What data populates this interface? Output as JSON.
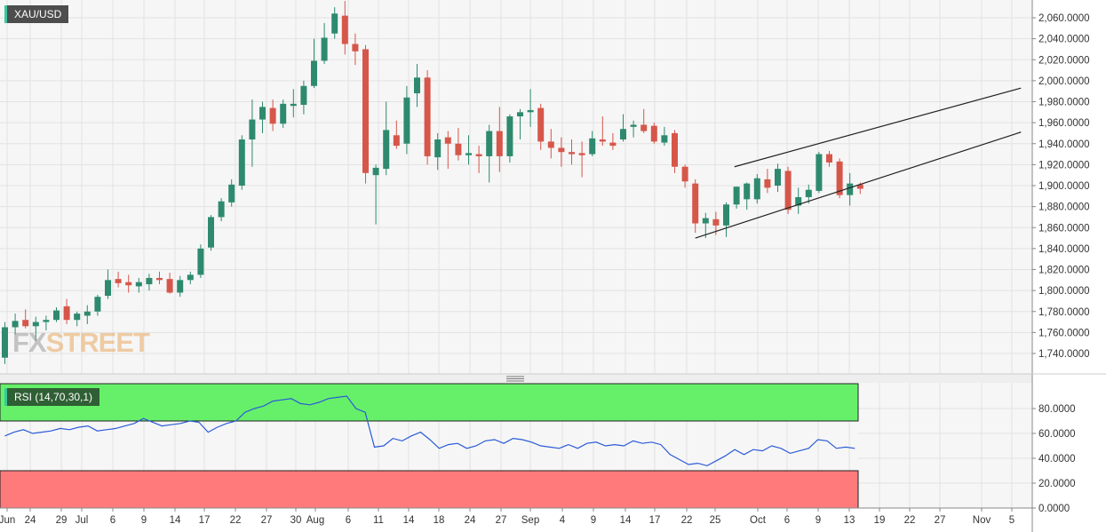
{
  "chart_data": [
    {
      "type": "candlestick",
      "symbol": "XAU/USD",
      "x_tick_labels": [
        "Jun",
        "24",
        "29",
        "Jul",
        "6",
        "9",
        "14",
        "17",
        "22",
        "27",
        "30",
        "Aug",
        "6",
        "11",
        "14",
        "18",
        "24",
        "27",
        "Sep",
        "4",
        "9",
        "14",
        "17",
        "22",
        "25",
        "Oct",
        "6",
        "9",
        "13",
        "19",
        "22",
        "27",
        "Nov",
        "5"
      ],
      "y_tick_labels": [
        "1,740.0000",
        "1,760.0000",
        "1,780.0000",
        "1,800.0000",
        "1,820.0000",
        "1,840.0000",
        "1,860.0000",
        "1,880.0000",
        "1,900.0000",
        "1,920.0000",
        "1,940.0000",
        "1,960.0000",
        "1,980.0000",
        "2,000.0000",
        "2,020.0000",
        "2,040.0000",
        "2,060.0000"
      ],
      "ylim": [
        1725,
        2075
      ],
      "grid": true,
      "colors": {
        "up": "#2e8a6e",
        "down": "#d6574a"
      },
      "candles": [
        {
          "o": 1736,
          "h": 1770,
          "l": 1730,
          "c": 1765
        },
        {
          "o": 1765,
          "h": 1778,
          "l": 1758,
          "c": 1771
        },
        {
          "o": 1772,
          "h": 1782,
          "l": 1764,
          "c": 1766
        },
        {
          "o": 1766,
          "h": 1775,
          "l": 1752,
          "c": 1770
        },
        {
          "o": 1770,
          "h": 1776,
          "l": 1762,
          "c": 1772
        },
        {
          "o": 1772,
          "h": 1784,
          "l": 1770,
          "c": 1781
        },
        {
          "o": 1785,
          "h": 1792,
          "l": 1768,
          "c": 1772
        },
        {
          "o": 1772,
          "h": 1780,
          "l": 1766,
          "c": 1778
        },
        {
          "o": 1776,
          "h": 1786,
          "l": 1768,
          "c": 1780
        },
        {
          "o": 1780,
          "h": 1796,
          "l": 1776,
          "c": 1794
        },
        {
          "o": 1795,
          "h": 1820,
          "l": 1792,
          "c": 1810
        },
        {
          "o": 1811,
          "h": 1818,
          "l": 1803,
          "c": 1807
        },
        {
          "o": 1808,
          "h": 1815,
          "l": 1798,
          "c": 1805
        },
        {
          "o": 1804,
          "h": 1812,
          "l": 1798,
          "c": 1808
        },
        {
          "o": 1806,
          "h": 1816,
          "l": 1800,
          "c": 1812
        },
        {
          "o": 1812,
          "h": 1818,
          "l": 1806,
          "c": 1810
        },
        {
          "o": 1811,
          "h": 1817,
          "l": 1797,
          "c": 1798
        },
        {
          "o": 1798,
          "h": 1814,
          "l": 1794,
          "c": 1810
        },
        {
          "o": 1810,
          "h": 1818,
          "l": 1806,
          "c": 1815
        },
        {
          "o": 1815,
          "h": 1844,
          "l": 1812,
          "c": 1840
        },
        {
          "o": 1841,
          "h": 1872,
          "l": 1838,
          "c": 1870
        },
        {
          "o": 1870,
          "h": 1888,
          "l": 1866,
          "c": 1885
        },
        {
          "o": 1884,
          "h": 1906,
          "l": 1880,
          "c": 1901
        },
        {
          "o": 1900,
          "h": 1948,
          "l": 1896,
          "c": 1944
        },
        {
          "o": 1944,
          "h": 1982,
          "l": 1918,
          "c": 1963
        },
        {
          "o": 1963,
          "h": 1980,
          "l": 1950,
          "c": 1975
        },
        {
          "o": 1974,
          "h": 1982,
          "l": 1952,
          "c": 1959
        },
        {
          "o": 1959,
          "h": 1982,
          "l": 1955,
          "c": 1978
        },
        {
          "o": 1976,
          "h": 1992,
          "l": 1965,
          "c": 1978
        },
        {
          "o": 1977,
          "h": 2000,
          "l": 1968,
          "c": 1995
        },
        {
          "o": 1995,
          "h": 2040,
          "l": 1993,
          "c": 2019
        },
        {
          "o": 2019,
          "h": 2055,
          "l": 2016,
          "c": 2041
        },
        {
          "o": 2045,
          "h": 2070,
          "l": 2040,
          "c": 2064
        },
        {
          "o": 2062,
          "h": 2076,
          "l": 2025,
          "c": 2035
        },
        {
          "o": 2035,
          "h": 2045,
          "l": 2015,
          "c": 2028
        },
        {
          "o": 2030,
          "h": 2034,
          "l": 1902,
          "c": 1912
        },
        {
          "o": 1910,
          "h": 1920,
          "l": 1863,
          "c": 1917
        },
        {
          "o": 1916,
          "h": 1980,
          "l": 1910,
          "c": 1953
        },
        {
          "o": 1948,
          "h": 1962,
          "l": 1935,
          "c": 1938
        },
        {
          "o": 1940,
          "h": 1995,
          "l": 1930,
          "c": 1984
        },
        {
          "o": 1988,
          "h": 2016,
          "l": 1975,
          "c": 2003
        },
        {
          "o": 2003,
          "h": 2010,
          "l": 1920,
          "c": 1928
        },
        {
          "o": 1927,
          "h": 1950,
          "l": 1915,
          "c": 1944
        },
        {
          "o": 1946,
          "h": 1952,
          "l": 1916,
          "c": 1940
        },
        {
          "o": 1940,
          "h": 1955,
          "l": 1924,
          "c": 1929
        },
        {
          "o": 1929,
          "h": 1948,
          "l": 1920,
          "c": 1931
        },
        {
          "o": 1930,
          "h": 1938,
          "l": 1912,
          "c": 1928
        },
        {
          "o": 1928,
          "h": 1958,
          "l": 1903,
          "c": 1952
        },
        {
          "o": 1952,
          "h": 1975,
          "l": 1913,
          "c": 1928
        },
        {
          "o": 1928,
          "h": 1968,
          "l": 1922,
          "c": 1966
        },
        {
          "o": 1966,
          "h": 1973,
          "l": 1944,
          "c": 1970
        },
        {
          "o": 1970,
          "h": 1992,
          "l": 1956,
          "c": 1972
        },
        {
          "o": 1974,
          "h": 1978,
          "l": 1934,
          "c": 1942
        },
        {
          "o": 1942,
          "h": 1954,
          "l": 1926,
          "c": 1936
        },
        {
          "o": 1936,
          "h": 1946,
          "l": 1918,
          "c": 1932
        },
        {
          "o": 1932,
          "h": 1944,
          "l": 1920,
          "c": 1930
        },
        {
          "o": 1931,
          "h": 1942,
          "l": 1908,
          "c": 1929
        },
        {
          "o": 1930,
          "h": 1952,
          "l": 1928,
          "c": 1945
        },
        {
          "o": 1944,
          "h": 1966,
          "l": 1938,
          "c": 1942
        },
        {
          "o": 1941,
          "h": 1950,
          "l": 1934,
          "c": 1938
        },
        {
          "o": 1944,
          "h": 1968,
          "l": 1942,
          "c": 1954
        },
        {
          "o": 1956,
          "h": 1962,
          "l": 1946,
          "c": 1958
        },
        {
          "o": 1958,
          "h": 1973,
          "l": 1950,
          "c": 1952
        },
        {
          "o": 1957,
          "h": 1960,
          "l": 1940,
          "c": 1942
        },
        {
          "o": 1941,
          "h": 1956,
          "l": 1938,
          "c": 1948
        },
        {
          "o": 1950,
          "h": 1953,
          "l": 1912,
          "c": 1918
        },
        {
          "o": 1918,
          "h": 1920,
          "l": 1898,
          "c": 1904
        },
        {
          "o": 1902,
          "h": 1906,
          "l": 1855,
          "c": 1864
        },
        {
          "o": 1864,
          "h": 1874,
          "l": 1850,
          "c": 1869
        },
        {
          "o": 1868,
          "h": 1875,
          "l": 1853,
          "c": 1862
        },
        {
          "o": 1862,
          "h": 1884,
          "l": 1851,
          "c": 1882
        },
        {
          "o": 1882,
          "h": 1899,
          "l": 1878,
          "c": 1899
        },
        {
          "o": 1887,
          "h": 1903,
          "l": 1877,
          "c": 1902
        },
        {
          "o": 1887,
          "h": 1911,
          "l": 1883,
          "c": 1907
        },
        {
          "o": 1906,
          "h": 1916,
          "l": 1893,
          "c": 1898
        },
        {
          "o": 1900,
          "h": 1921,
          "l": 1894,
          "c": 1916
        },
        {
          "o": 1914,
          "h": 1918,
          "l": 1873,
          "c": 1877
        },
        {
          "o": 1881,
          "h": 1898,
          "l": 1873,
          "c": 1889
        },
        {
          "o": 1889,
          "h": 1901,
          "l": 1883,
          "c": 1896
        },
        {
          "o": 1895,
          "h": 1932,
          "l": 1893,
          "c": 1930
        },
        {
          "o": 1930,
          "h": 1933,
          "l": 1918,
          "c": 1922
        },
        {
          "o": 1923,
          "h": 1926,
          "l": 1888,
          "c": 1891
        },
        {
          "o": 1891,
          "h": 1912,
          "l": 1881,
          "c": 1902
        },
        {
          "o": 1901,
          "h": 1903,
          "l": 1892,
          "c": 1897
        }
      ],
      "trendlines": [
        {
          "x1": 67,
          "y1": 1850,
          "x2": 98.6,
          "y2": 1951
        },
        {
          "x1": 70.8,
          "y1": 1918,
          "x2": 98.6,
          "y2": 1993
        }
      ]
    },
    {
      "type": "line",
      "name": "RSI (14,70,30,1)",
      "y_tick_labels": [
        "0.0000",
        "20.0000",
        "40.0000",
        "60.0000",
        "80.0000"
      ],
      "ylim": [
        0,
        100
      ],
      "overbought": 70,
      "oversold": 30,
      "colors": {
        "line": "#2a5bd7",
        "overbought_zone": "#66f06a",
        "oversold_zone": "#ff7b7b"
      },
      "values": [
        58,
        61,
        63,
        60,
        61,
        62,
        64,
        63,
        65,
        66,
        62,
        63,
        64,
        66,
        68,
        72,
        69,
        66,
        67,
        68,
        70,
        69,
        61,
        65,
        68,
        70,
        77,
        80,
        82,
        86,
        87,
        88,
        84,
        83,
        85,
        88,
        89,
        90,
        80,
        77,
        49,
        50,
        56,
        54,
        58,
        61,
        55,
        48,
        51,
        52,
        48,
        50,
        54,
        55,
        52,
        56,
        55,
        53,
        50,
        49,
        48,
        51,
        48,
        52,
        53,
        50,
        51,
        50,
        54,
        52,
        53,
        51,
        43,
        39,
        35,
        36,
        34,
        38,
        42,
        47,
        43,
        47,
        46,
        50,
        48,
        44,
        46,
        48,
        55,
        54,
        48,
        49,
        48
      ]
    }
  ],
  "header": {
    "symbol": "XAU/USD",
    "indicator_label": "RSI (14,70,30,1)"
  },
  "watermark": {
    "fx": "FX",
    "street": "STREET"
  }
}
